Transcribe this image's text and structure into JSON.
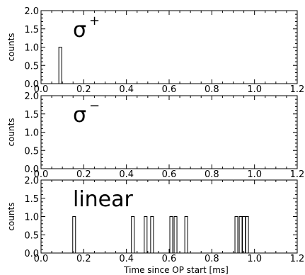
{
  "chart_data": [
    {
      "type": "bar",
      "title": "",
      "annotation": "σ",
      "annotation_sup": "+",
      "xlabel": "",
      "ylabel": "counts",
      "xlim": [
        0.0,
        1.2
      ],
      "ylim": [
        0.0,
        2.0
      ],
      "xticks": [
        "0.0",
        "0.2",
        "0.4",
        "0.6",
        "0.8",
        "1.0",
        "1.2"
      ],
      "yticks": [
        "0.0",
        "0.5",
        "1.0",
        "1.5",
        "2.0"
      ],
      "bars": [
        {
          "x": 0.09,
          "count": 1
        }
      ]
    },
    {
      "type": "bar",
      "title": "",
      "annotation": "σ",
      "annotation_sup": "−",
      "xlabel": "",
      "ylabel": "counts",
      "xlim": [
        0.0,
        1.2
      ],
      "ylim": [
        0.0,
        2.0
      ],
      "xticks": [
        "0.0",
        "0.2",
        "0.4",
        "0.6",
        "0.8",
        "1.0",
        "1.2"
      ],
      "yticks": [
        "0.0",
        "0.5",
        "1.0",
        "1.5",
        "2.0"
      ],
      "bars": []
    },
    {
      "type": "bar",
      "title": "",
      "annotation": "linear",
      "annotation_sup": "",
      "xlabel": "Time since OP start [ms]",
      "ylabel": "counts",
      "xlim": [
        0.0,
        1.2
      ],
      "ylim": [
        0.0,
        2.0
      ],
      "xticks": [
        "0.0",
        "0.2",
        "0.4",
        "0.6",
        "0.8",
        "1.0",
        "1.2"
      ],
      "yticks": [
        "0.0",
        "0.5",
        "1.0",
        "1.5",
        "2.0"
      ],
      "bars": [
        {
          "x": 0.155,
          "count": 1
        },
        {
          "x": 0.43,
          "count": 1
        },
        {
          "x": 0.49,
          "count": 1
        },
        {
          "x": 0.52,
          "count": 1
        },
        {
          "x": 0.61,
          "count": 1
        },
        {
          "x": 0.63,
          "count": 1
        },
        {
          "x": 0.68,
          "count": 1
        },
        {
          "x": 0.915,
          "count": 1
        },
        {
          "x": 0.935,
          "count": 1
        },
        {
          "x": 0.95,
          "count": 1
        },
        {
          "x": 0.965,
          "count": 1
        }
      ]
    }
  ]
}
